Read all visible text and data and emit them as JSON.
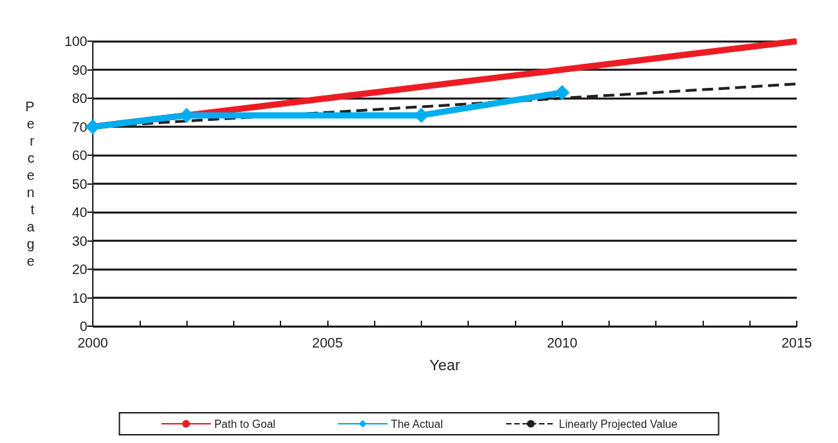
{
  "chart_data": {
    "type": "line",
    "xlabel": "Year",
    "ylabel": "Percentage",
    "xlim": [
      2000,
      2015
    ],
    "xticks": [
      2000,
      {
        "value": 2001,
        "label": null
      },
      {
        "value": 2002,
        "label": null
      },
      {
        "value": 2003,
        "label": null
      },
      {
        "value": 2004,
        "label": null
      },
      2005,
      {
        "value": 2006,
        "label": null
      },
      {
        "value": 2007,
        "label": null
      },
      {
        "value": 2008,
        "label": null
      },
      {
        "value": 2009,
        "label": null
      },
      2010,
      {
        "value": 2011,
        "label": null
      },
      {
        "value": 2012,
        "label": null
      },
      {
        "value": 2013,
        "label": null
      },
      {
        "value": 2014,
        "label": null
      },
      2015
    ],
    "ylim": [
      0,
      100
    ],
    "yticks": [
      0,
      10,
      20,
      30,
      40,
      50,
      60,
      70,
      80,
      90,
      100
    ],
    "grid": "y",
    "legend": "bottom",
    "series": [
      {
        "name": "Path to Goal",
        "color": "#ed1c24",
        "x": [
          2000,
          2015
        ],
        "values": [
          70,
          100
        ],
        "marker": "none",
        "line_style": "solid"
      },
      {
        "name": "The Actual",
        "color": "#00aeef",
        "x": [
          2000,
          2002,
          2007,
          2010
        ],
        "values": [
          70,
          74,
          74,
          82
        ],
        "marker": "diamond",
        "line_style": "solid"
      },
      {
        "name": "Linearly Projected Value",
        "color": "#231f20",
        "x": [
          2000,
          2015
        ],
        "values": [
          70,
          85
        ],
        "marker": "none",
        "line_style": "dashed"
      }
    ]
  }
}
